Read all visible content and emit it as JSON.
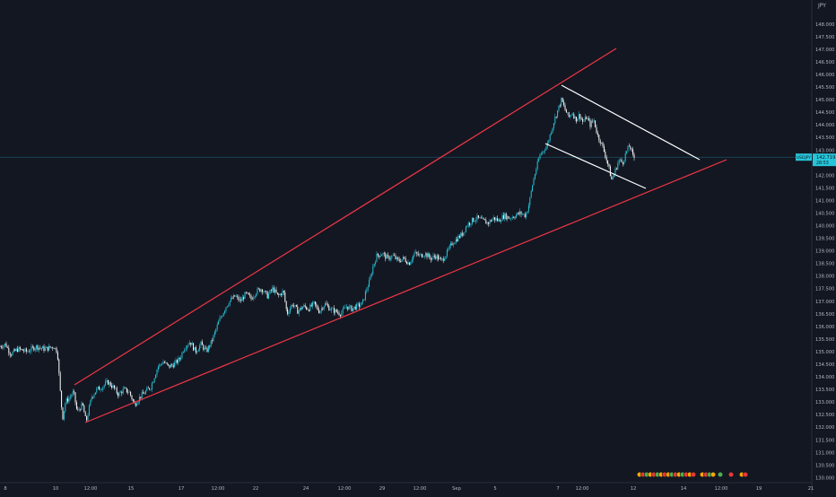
{
  "chart_data": {
    "type": "candlestick",
    "currency_label": "JPY",
    "pair_badge": "USDJPY",
    "last_price": "142.719",
    "countdown": "28:53",
    "x_tick_labels": [
      "8",
      "10",
      "12:00",
      "15",
      "17",
      "12:00",
      "22",
      "24",
      "12:00",
      "29",
      "12:00",
      "Sep",
      "5",
      "7",
      "12:00",
      "12",
      "14",
      "12:00",
      "19",
      "21"
    ],
    "y_tick_labels": [
      "130.000",
      "130.500",
      "131.000",
      "131.500",
      "132.000",
      "132.500",
      "133.000",
      "133.500",
      "134.000",
      "134.500",
      "135.000",
      "135.500",
      "136.000",
      "136.500",
      "137.000",
      "137.500",
      "138.000",
      "138.500",
      "139.000",
      "139.500",
      "140.000",
      "140.500",
      "141.000",
      "141.500",
      "142.000",
      "142.500",
      "143.000",
      "143.500",
      "144.000",
      "144.500",
      "145.000",
      "145.500",
      "146.000",
      "146.500",
      "147.000",
      "147.500",
      "148.000"
    ],
    "ylim": [
      129.8,
      148.6
    ],
    "series_path": [
      [
        0,
        135.2
      ],
      [
        6,
        135.3
      ],
      [
        12,
        134.9
      ],
      [
        20,
        135.1
      ],
      [
        30,
        135.0
      ],
      [
        40,
        135.2
      ],
      [
        50,
        135.1
      ],
      [
        60,
        135.2
      ],
      [
        64,
        135.0
      ],
      [
        66,
        134.0
      ],
      [
        68,
        133.0
      ],
      [
        70,
        132.4
      ],
      [
        73,
        133.0
      ],
      [
        78,
        133.2
      ],
      [
        82,
        133.4
      ],
      [
        86,
        132.6
      ],
      [
        92,
        132.9
      ],
      [
        96,
        132.2
      ],
      [
        102,
        133.2
      ],
      [
        108,
        133.5
      ],
      [
        114,
        133.6
      ],
      [
        120,
        133.8
      ],
      [
        126,
        133.6
      ],
      [
        132,
        133.3
      ],
      [
        138,
        133.5
      ],
      [
        144,
        133.4
      ],
      [
        150,
        132.9
      ],
      [
        156,
        133.2
      ],
      [
        162,
        133.4
      ],
      [
        168,
        133.6
      ],
      [
        172,
        134.0
      ],
      [
        176,
        134.4
      ],
      [
        182,
        134.6
      ],
      [
        188,
        134.4
      ],
      [
        194,
        134.5
      ],
      [
        200,
        134.7
      ],
      [
        206,
        135.2
      ],
      [
        212,
        135.4
      ],
      [
        218,
        135.0
      ],
      [
        224,
        135.3
      ],
      [
        230,
        135.0
      ],
      [
        236,
        135.4
      ],
      [
        240,
        135.8
      ],
      [
        244,
        136.2
      ],
      [
        248,
        136.5
      ],
      [
        252,
        136.8
      ],
      [
        256,
        137.0
      ],
      [
        262,
        137.2
      ],
      [
        268,
        137.0
      ],
      [
        274,
        137.3
      ],
      [
        280,
        137.1
      ],
      [
        286,
        137.4
      ],
      [
        292,
        137.5
      ],
      [
        298,
        137.2
      ],
      [
        304,
        137.5
      ],
      [
        310,
        137.2
      ],
      [
        316,
        137.4
      ],
      [
        320,
        136.5
      ],
      [
        326,
        136.9
      ],
      [
        332,
        136.6
      ],
      [
        338,
        136.8
      ],
      [
        344,
        136.7
      ],
      [
        350,
        136.9
      ],
      [
        356,
        136.6
      ],
      [
        362,
        136.9
      ],
      [
        368,
        136.7
      ],
      [
        374,
        136.6
      ],
      [
        380,
        136.5
      ],
      [
        386,
        136.8
      ],
      [
        392,
        136.7
      ],
      [
        398,
        136.8
      ],
      [
        404,
        136.9
      ],
      [
        408,
        137.4
      ],
      [
        412,
        137.8
      ],
      [
        416,
        138.4
      ],
      [
        420,
        138.8
      ],
      [
        426,
        138.9
      ],
      [
        432,
        138.7
      ],
      [
        438,
        138.8
      ],
      [
        444,
        138.6
      ],
      [
        450,
        138.7
      ],
      [
        456,
        138.5
      ],
      [
        462,
        138.9
      ],
      [
        468,
        138.8
      ],
      [
        474,
        138.9
      ],
      [
        480,
        138.7
      ],
      [
        486,
        138.8
      ],
      [
        492,
        138.6
      ],
      [
        498,
        138.9
      ],
      [
        504,
        139.3
      ],
      [
        510,
        139.5
      ],
      [
        516,
        139.7
      ],
      [
        520,
        140.0
      ],
      [
        526,
        140.2
      ],
      [
        532,
        140.3
      ],
      [
        538,
        140.2
      ],
      [
        544,
        140.1
      ],
      [
        550,
        140.3
      ],
      [
        556,
        140.2
      ],
      [
        562,
        140.4
      ],
      [
        568,
        140.3
      ],
      [
        574,
        140.4
      ],
      [
        580,
        140.5
      ],
      [
        586,
        140.4
      ],
      [
        590,
        140.9
      ],
      [
        594,
        141.7
      ],
      [
        598,
        142.3
      ],
      [
        602,
        142.8
      ],
      [
        606,
        143.0
      ],
      [
        610,
        143.2
      ],
      [
        614,
        143.7
      ],
      [
        618,
        144.2
      ],
      [
        622,
        144.6
      ],
      [
        626,
        145.0
      ],
      [
        630,
        144.6
      ],
      [
        634,
        144.3
      ],
      [
        638,
        144.5
      ],
      [
        642,
        144.2
      ],
      [
        646,
        144.4
      ],
      [
        650,
        144.1
      ],
      [
        654,
        144.3
      ],
      [
        658,
        144.0
      ],
      [
        662,
        144.2
      ],
      [
        666,
        143.6
      ],
      [
        670,
        143.3
      ],
      [
        674,
        142.9
      ],
      [
        678,
        142.4
      ],
      [
        682,
        141.8
      ],
      [
        686,
        142.2
      ],
      [
        690,
        142.6
      ],
      [
        694,
        142.5
      ],
      [
        698,
        142.9
      ],
      [
        702,
        143.2
      ],
      [
        706,
        142.7
      ],
      [
        708,
        142.7
      ]
    ]
  }
}
